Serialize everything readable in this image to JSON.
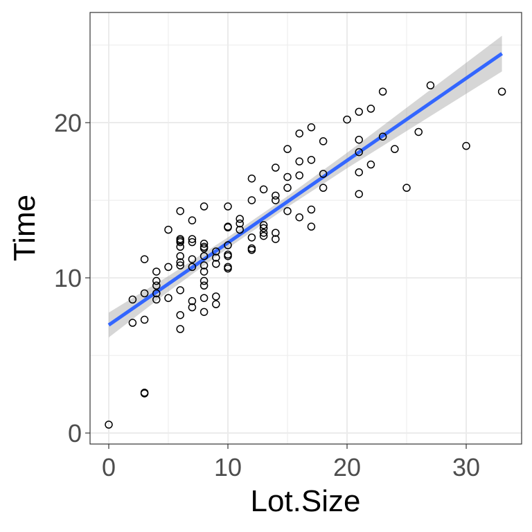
{
  "chart_data": {
    "type": "scatter",
    "title": "",
    "xlabel": "Lot.Size",
    "ylabel": "Time",
    "xlim": [
      -1.57,
      34.65
    ],
    "ylim": [
      -0.71,
      27.1
    ],
    "xticks": [
      0,
      10,
      20,
      30
    ],
    "yticks": [
      0,
      10,
      20
    ],
    "xtick_labels": [
      "0",
      "10",
      "20",
      "30"
    ],
    "ytick_labels": [
      "0",
      "10",
      "20"
    ],
    "grid": true,
    "points": {
      "x": [
        0,
        2,
        2,
        3,
        3,
        3,
        3,
        3,
        4,
        4,
        4,
        4,
        4,
        5,
        5,
        5,
        6,
        6,
        6,
        6,
        6,
        6,
        6,
        6,
        6,
        6,
        6,
        7,
        7,
        7,
        7,
        7,
        7,
        7,
        8,
        8,
        8,
        8,
        8,
        8,
        8,
        8,
        8,
        8,
        8,
        9,
        9,
        9,
        9,
        9,
        10,
        10,
        10,
        10,
        10,
        10,
        10,
        10,
        11,
        11,
        11,
        12,
        12,
        12,
        12,
        12,
        13,
        13,
        13,
        13,
        13,
        14,
        14,
        14,
        14,
        14,
        15,
        15,
        15,
        15,
        16,
        16,
        16,
        16,
        17,
        17,
        17,
        17,
        18,
        18,
        18,
        20,
        21,
        21,
        21,
        21,
        21,
        22,
        22,
        23,
        23,
        24,
        25,
        26,
        27,
        30,
        33
      ],
      "y": [
        0.54,
        8.6,
        7.1,
        11.2,
        9.0,
        7.3,
        2.6,
        2.55,
        10.4,
        9.8,
        9.5,
        9.0,
        8.6,
        13.1,
        10.7,
        8.7,
        14.3,
        12.5,
        12.3,
        12.0,
        11.4,
        11.0,
        10.8,
        9.2,
        7.6,
        6.7,
        12.4,
        13.7,
        12.5,
        12.3,
        11.2,
        10.7,
        8.5,
        8.1,
        14.6,
        12.2,
        12.0,
        11.4,
        10.8,
        10.4,
        9.8,
        9.5,
        8.7,
        7.8,
        11.9,
        11.7,
        11.3,
        10.9,
        8.8,
        8.3,
        14.6,
        13.3,
        13.25,
        12.1,
        11.5,
        11.4,
        10.7,
        10.6,
        13.8,
        13.5,
        13.1,
        16.4,
        15.0,
        12.6,
        11.9,
        11.8,
        15.7,
        13.4,
        13.2,
        12.9,
        12.7,
        17.1,
        15.3,
        15.0,
        12.9,
        12.5,
        18.3,
        16.5,
        15.8,
        14.3,
        19.3,
        17.5,
        16.6,
        13.9,
        19.7,
        17.6,
        14.4,
        13.3,
        18.8,
        16.7,
        15.8,
        20.2,
        20.7,
        18.9,
        18.1,
        16.8,
        15.4,
        20.9,
        17.3,
        22.0,
        19.1,
        18.3,
        15.8,
        19.4,
        22.4,
        18.5,
        22.0
      ]
    },
    "fit": {
      "intercept": 6.96,
      "slope": 0.53,
      "x_range": [
        0,
        33
      ],
      "color": "#3366FF"
    },
    "confidence_band": {
      "x": [
        0,
        5,
        10,
        15,
        20,
        25,
        30,
        33
      ],
      "halfwidth": [
        0.8,
        0.5,
        0.35,
        0.35,
        0.5,
        0.75,
        1.0,
        1.15
      ],
      "color": "#999999"
    }
  }
}
